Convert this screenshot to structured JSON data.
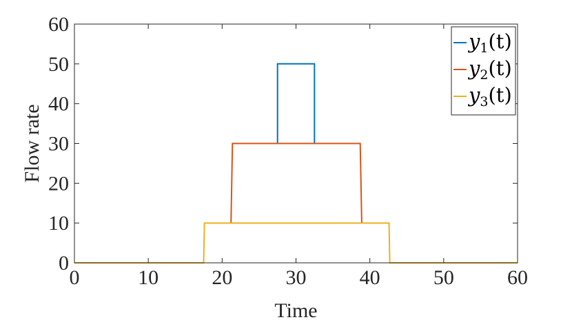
{
  "chart_data": {
    "type": "line",
    "title": "",
    "xlabel": "Time",
    "ylabel": "Flow rate",
    "xlim": [
      0,
      60
    ],
    "ylim": [
      0,
      60
    ],
    "xticks": [
      0,
      10,
      20,
      30,
      40,
      50,
      60
    ],
    "yticks": [
      0,
      10,
      20,
      30,
      40,
      50,
      60
    ],
    "grid": false,
    "legend_position": "top-right",
    "series": [
      {
        "name": "y1(t)",
        "legend": {
          "base": "y",
          "sub": "1",
          "arg": "(t)"
        },
        "color": "#0072BD",
        "x": [
          27.5,
          27.5,
          32.5,
          32.5
        ],
        "y": [
          30,
          50,
          50,
          30
        ]
      },
      {
        "name": "y2(t)",
        "legend": {
          "base": "y",
          "sub": "2",
          "arg": "(t)"
        },
        "color": "#D95319",
        "x": [
          21.2,
          21.4,
          38.7,
          38.9
        ],
        "y": [
          10,
          30,
          30,
          10
        ]
      },
      {
        "name": "y3(t)",
        "legend": {
          "base": "y",
          "sub": "3",
          "arg": "(t)"
        },
        "color": "#EDB120",
        "x": [
          0,
          17.5,
          17.6,
          42.6,
          42.7,
          60
        ],
        "y": [
          0,
          0,
          10,
          10,
          0,
          0
        ]
      }
    ]
  }
}
